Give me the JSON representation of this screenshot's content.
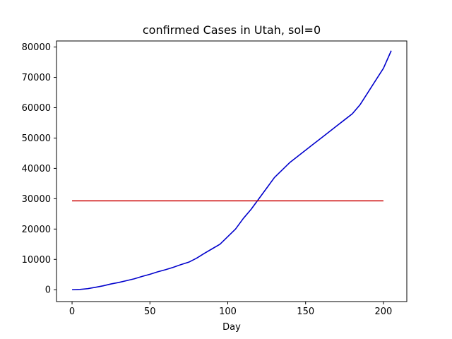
{
  "chart_data": {
    "type": "line",
    "title": "confirmed Cases in Utah, sol=0",
    "xlabel": "Day",
    "ylabel": "",
    "xlim": [
      -10,
      215
    ],
    "ylim": [
      -3900,
      82000
    ],
    "x_ticks": [
      0,
      50,
      100,
      150,
      200
    ],
    "y_ticks": [
      0,
      10000,
      20000,
      30000,
      40000,
      50000,
      60000,
      70000,
      80000
    ],
    "grid": false,
    "legend": "none",
    "series": [
      {
        "color": "#0000cc",
        "x": [
          0,
          5,
          10,
          15,
          20,
          25,
          30,
          35,
          40,
          45,
          50,
          55,
          60,
          65,
          70,
          75,
          80,
          85,
          90,
          95,
          100,
          105,
          110,
          115,
          120,
          125,
          130,
          135,
          140,
          145,
          150,
          155,
          160,
          165,
          170,
          175,
          180,
          185,
          190,
          195,
          200,
          205
        ],
        "y": [
          0,
          100,
          350,
          800,
          1300,
          1900,
          2400,
          3000,
          3600,
          4400,
          5100,
          5900,
          6600,
          7400,
          8300,
          9100,
          10400,
          12000,
          13500,
          15000,
          17500,
          20000,
          23500,
          26500,
          30000,
          33500,
          37000,
          39500,
          42000,
          44000,
          46000,
          48000,
          50000,
          52000,
          54000,
          56000,
          58000,
          61000,
          65000,
          69000,
          73000,
          78800
        ]
      },
      {
        "color": "#cc0000",
        "x": [
          0,
          200
        ],
        "y": [
          29300,
          29300
        ]
      }
    ]
  }
}
